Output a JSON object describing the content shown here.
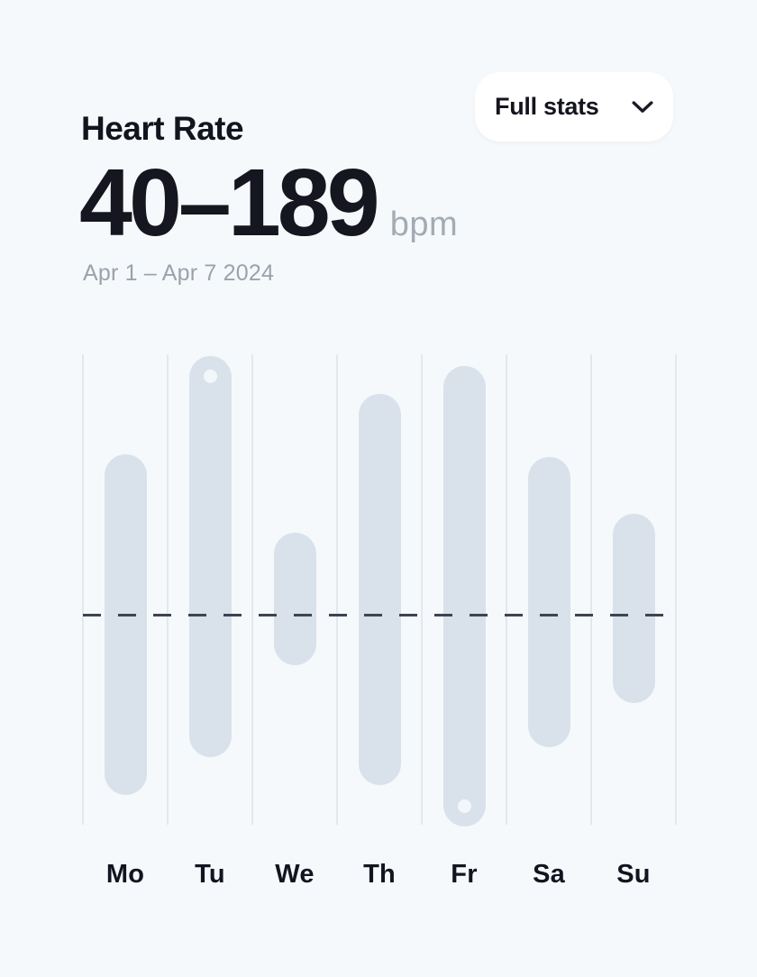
{
  "header": {
    "title": "Heart Rate",
    "button": {
      "label": "Full stats",
      "icon": "chevron-down-icon"
    }
  },
  "summary": {
    "range": "40–189",
    "unit": "bpm",
    "period": "Apr 1 – Apr 7 2024"
  },
  "chart_data": {
    "type": "bar",
    "subtype": "vertical-range-bars",
    "categories": [
      "Mo",
      "Tu",
      "We",
      "Th",
      "Fr",
      "Sa",
      "Su"
    ],
    "series": [
      {
        "name": "min bpm",
        "values": [
          50,
          62,
          91,
          53,
          40,
          65,
          79
        ]
      },
      {
        "name": "max bpm",
        "values": [
          158,
          189,
          133,
          177,
          186,
          157,
          139
        ]
      }
    ],
    "ylim": [
      40,
      189
    ],
    "average_line": 107,
    "markers": [
      {
        "category": "Tu",
        "type": "max",
        "value": 189
      },
      {
        "category": "Fr",
        "type": "min",
        "value": 40
      }
    ],
    "grid": "vertical-lines",
    "legend": "none",
    "colors": {
      "bar": "#d9e2eb",
      "gridline": "#e3e8ec",
      "dashed_line": "#3d4452",
      "marker_dot": "#f2f7fa",
      "background": "#f6f9fb",
      "text_dark": "#13141e",
      "text_gray": "#9aa2ad"
    }
  }
}
